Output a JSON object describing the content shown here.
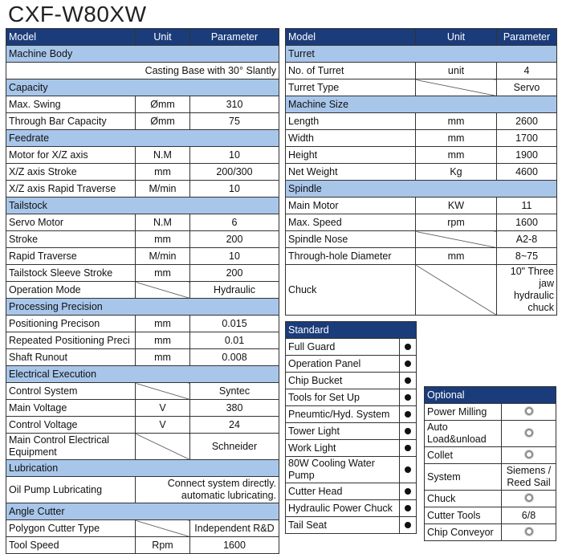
{
  "header": {
    "title": "CXF-W80XW"
  },
  "left_table": {
    "columns": [
      "Model",
      "Unit",
      "Parameter"
    ],
    "rows": [
      {
        "section": "Machine Body"
      },
      {
        "full": "Casting Base with 30° Slantly"
      },
      {
        "section": "Capacity"
      },
      [
        "Max. Swing",
        "Ømm",
        "310"
      ],
      [
        "Through Bar Capacity",
        "Ømm",
        "75"
      ],
      {
        "section": "Feedrate"
      },
      [
        "Motor for X/Z axis",
        "N.M",
        "10"
      ],
      [
        "X/Z axis Stroke",
        "mm",
        "200/300"
      ],
      [
        "X/Z axis Rapid Traverse",
        "M/min",
        "10"
      ],
      {
        "section": "Tailstock"
      },
      [
        "Servo Motor",
        "N.M",
        "6"
      ],
      [
        "Stroke",
        "mm",
        "200"
      ],
      [
        "Rapid Traverse",
        "M/min",
        "10"
      ],
      [
        "Tailstock Sleeve Stroke",
        "mm",
        "200"
      ],
      [
        "Operation Mode",
        null,
        "Hydraulic"
      ],
      {
        "section": "Processing Precision"
      },
      [
        "Positioning Precison",
        "mm",
        "0.015"
      ],
      [
        "Repeated Positioning Preci",
        "mm",
        "0.01"
      ],
      [
        "Shaft Runout",
        "mm",
        "0.008"
      ],
      {
        "section": "Electrical Execution"
      },
      [
        "Control System",
        null,
        "Syntec"
      ],
      [
        "Main Voltage",
        "V",
        "380"
      ],
      [
        "Control Voltage",
        "V",
        "24"
      ],
      [
        "Main Control Electrical Equipment",
        null,
        "Schneider"
      ],
      {
        "section": "Lubrication"
      },
      [
        "Oil Pump Lubricating",
        "Connect system directly. automatic lubricating."
      ],
      {
        "section": "Angle Cutter"
      },
      [
        "Polygon Cutter Type",
        null,
        "Independent R&D"
      ],
      [
        "Tool Speed",
        "Rpm",
        "1600"
      ]
    ]
  },
  "right_table": {
    "columns": [
      "Model",
      "Unit",
      "Parameter"
    ],
    "rows": [
      {
        "section": "Turret"
      },
      [
        "No. of Turret",
        "unit",
        "4"
      ],
      [
        "Turret Type",
        null,
        "Servo"
      ],
      {
        "section": "Machine Size"
      },
      [
        "Length",
        "mm",
        "2600"
      ],
      [
        "Width",
        "mm",
        "1700"
      ],
      [
        "Height",
        "mm",
        "1900"
      ],
      [
        "Net Weight",
        "Kg",
        "4600"
      ],
      {
        "section": "Spindle"
      },
      [
        "Main Motor",
        "KW",
        "11"
      ],
      [
        "Max. Speed",
        "rpm",
        "1600"
      ],
      [
        "Spindle Nose",
        null,
        "A2-8"
      ],
      [
        "Through-hole Diameter",
        "mm",
        "8~75"
      ],
      [
        "Chuck",
        null,
        "10\" Three jaw hydraulic chuck"
      ]
    ]
  },
  "standard": {
    "title": "Standard",
    "items": [
      "Full Guard",
      "Operation Panel",
      "Chip Bucket",
      "Tools for Set Up",
      "Pneumtic/Hyd. System",
      "Tower Light",
      "Work Light",
      "80W Cooling Water Pump",
      "Cutter Head",
      "Hydraulic Power Chuck",
      "Tail Seat"
    ]
  },
  "optional": {
    "title": "Optional",
    "items": [
      [
        "Power Milling",
        null
      ],
      [
        "Auto Load&unload",
        null
      ],
      [
        "Collet",
        null
      ],
      [
        "System",
        "Siemens / Reed Sail"
      ],
      [
        "Chuck",
        null
      ],
      [
        "Cutter Tools",
        "6/8"
      ],
      [
        "Chip Conveyor",
        null
      ]
    ]
  }
}
